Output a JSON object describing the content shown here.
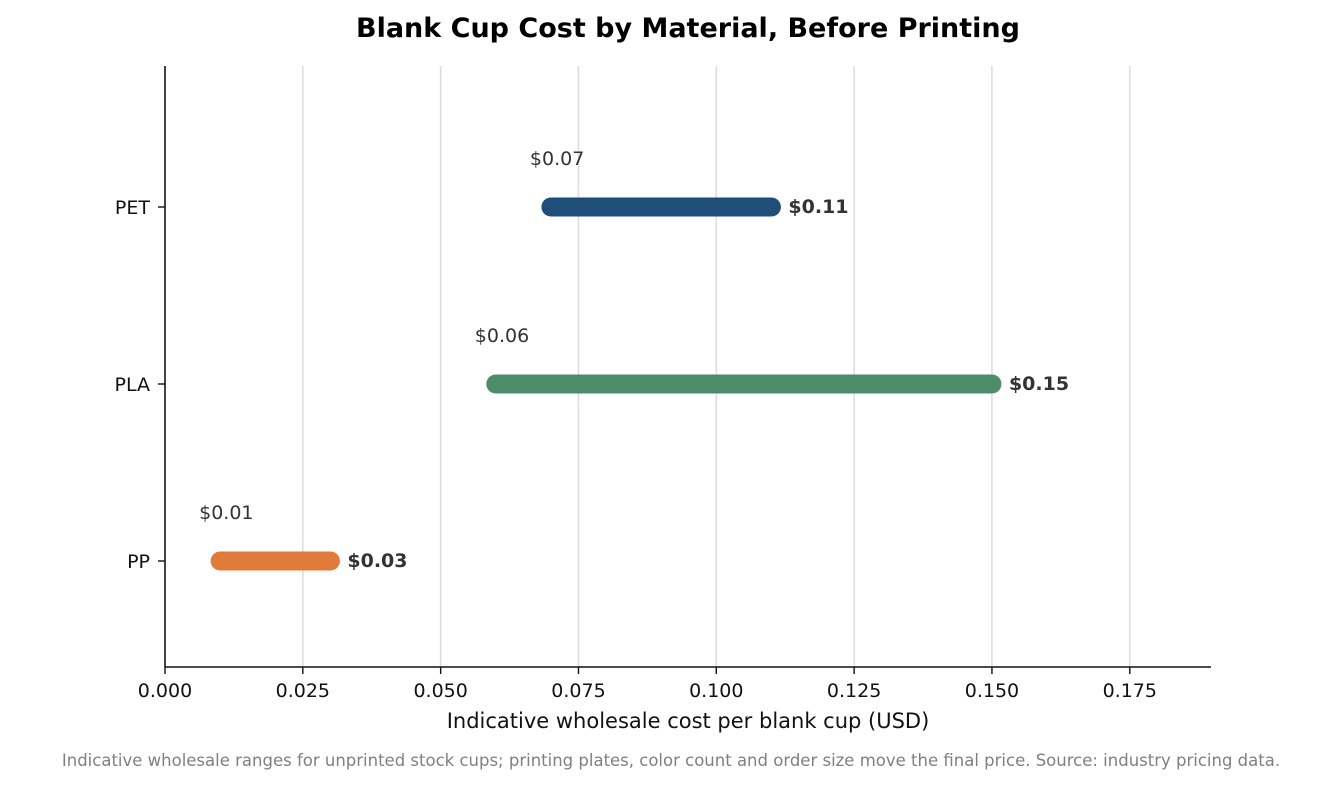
{
  "chart_data": {
    "type": "range-bar",
    "title": "Blank Cup Cost by Material, Before Printing",
    "xlabel": "Indicative wholesale cost per blank cup (USD)",
    "ylabel": "",
    "xlim": [
      0,
      0.19
    ],
    "xticks": [
      0.0,
      0.025,
      0.05,
      0.075,
      0.1,
      0.125,
      0.15,
      0.175
    ],
    "xtick_labels": [
      "0.000",
      "0.025",
      "0.050",
      "0.075",
      "0.100",
      "0.125",
      "0.150",
      "0.175"
    ],
    "grid": "vertical",
    "categories": [
      "PET",
      "PLA",
      "PP"
    ],
    "series": [
      {
        "category": "PET",
        "low": 0.07,
        "high": 0.11,
        "low_label": "$0.07",
        "high_label": "$0.11",
        "color": "#1f4e79"
      },
      {
        "category": "PLA",
        "low": 0.06,
        "high": 0.15,
        "low_label": "$0.06",
        "high_label": "$0.15",
        "color": "#4d8c6b"
      },
      {
        "category": "PP",
        "low": 0.01,
        "high": 0.03,
        "low_label": "$0.01",
        "high_label": "$0.03",
        "color": "#e07b39"
      }
    ]
  },
  "footnote": "Indicative wholesale ranges for unprinted stock cups; printing plates, color count and order size move the final price. Source: industry pricing data."
}
